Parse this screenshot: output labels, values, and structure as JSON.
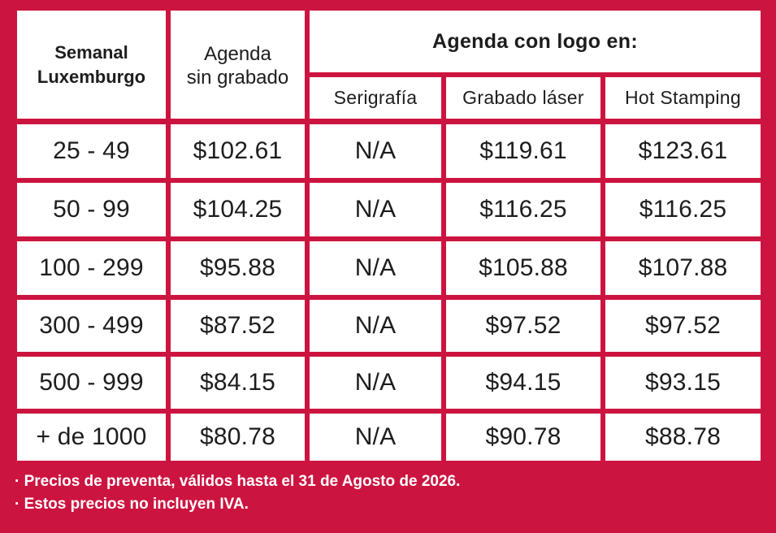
{
  "colors": {
    "background": "#cc1440",
    "cell": "#ffffff",
    "text": "#1d1d1d"
  },
  "header": {
    "row_label_line1": "Semanal",
    "row_label_line2": "Luxemburgo",
    "agenda_line1": "Agenda",
    "agenda_line2": "sin grabado",
    "logo_group": "Agenda con logo en:",
    "serigrafia": "Serigrafía",
    "grabado_laser": "Grabado láser",
    "hot_stamping": "Hot Stamping"
  },
  "rows": [
    {
      "qty": "25 - 49",
      "sin_grabado": "$102.61",
      "serigrafia": "N/A",
      "laser": "$119.61",
      "hot": "$123.61"
    },
    {
      "qty": "50 - 99",
      "sin_grabado": "$104.25",
      "serigrafia": "N/A",
      "laser": "$116.25",
      "hot": "$116.25"
    },
    {
      "qty": "100 - 299",
      "sin_grabado": "$95.88",
      "serigrafia": "N/A",
      "laser": "$105.88",
      "hot": "$107.88"
    },
    {
      "qty": "300 - 499",
      "sin_grabado": "$87.52",
      "serigrafia": "N/A",
      "laser": "$97.52",
      "hot": "$97.52"
    },
    {
      "qty": "500 - 999",
      "sin_grabado": "$84.15",
      "serigrafia": "N/A",
      "laser": "$94.15",
      "hot": "$93.15"
    },
    {
      "qty": "+ de 1000",
      "sin_grabado": "$80.78",
      "serigrafia": "N/A",
      "laser": "$90.78",
      "hot": "$88.78"
    }
  ],
  "notes": [
    "· Precios de preventa, válidos hasta el 31 de Agosto de 2026.",
    "· Estos precios no incluyen IVA."
  ]
}
